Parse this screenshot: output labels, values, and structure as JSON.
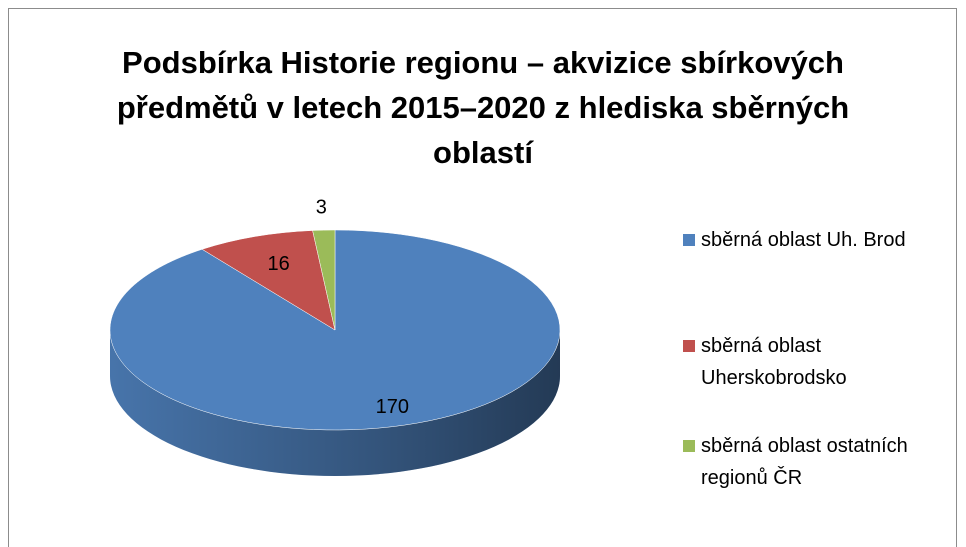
{
  "chart_data": {
    "type": "pie",
    "title": "Podsbírka Historie regionu – akvizice sbírkových předmětů v letech 2015–2020 z hlediska sběrných oblastí",
    "categories": [
      "sběrná oblast Uh. Brod",
      "sběrná oblast Uherskobrodsko",
      "sběrná oblast ostatních regionů ČR"
    ],
    "values": [
      170,
      16,
      3
    ],
    "colors": [
      "#4f81bd",
      "#c0504d",
      "#9bbb59"
    ],
    "legend": "right"
  }
}
